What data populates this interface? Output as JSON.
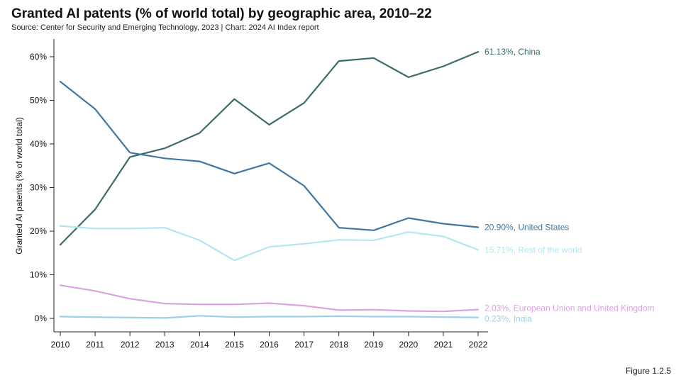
{
  "header": {
    "title": "Granted AI patents (% of world total) by geographic area, 2010–22",
    "subtitle": "Source: Center for Security and Emerging Technology, 2023 | Chart: 2024 AI Index report"
  },
  "footer": {
    "figure_label": "Figure 1.2.5"
  },
  "chart_data": {
    "type": "line",
    "x": [
      2010,
      2011,
      2012,
      2013,
      2014,
      2015,
      2016,
      2017,
      2018,
      2019,
      2020,
      2021,
      2022
    ],
    "ylabel": "Granted AI patents (% of world total)",
    "xlabel": "",
    "ylim": [
      0,
      65
    ],
    "yticks": [
      0,
      10,
      20,
      30,
      40,
      50,
      60
    ],
    "ytick_labels": [
      "0%",
      "10%",
      "20%",
      "30%",
      "40%",
      "50%",
      "60%"
    ],
    "grid": false,
    "series": [
      {
        "name": "China",
        "color": "#3d6b6b",
        "end_label": "61.13%, China",
        "values": [
          16.9,
          25.0,
          37.0,
          39.0,
          42.5,
          50.3,
          44.4,
          49.4,
          59.0,
          59.7,
          55.3,
          57.8,
          61.13
        ]
      },
      {
        "name": "United States",
        "color": "#3f77a2",
        "end_label": "20.90%, United States",
        "values": [
          54.3,
          48.0,
          38.0,
          36.7,
          36.0,
          33.2,
          35.6,
          30.4,
          20.8,
          20.2,
          23.0,
          21.7,
          20.9
        ]
      },
      {
        "name": "Rest of the world",
        "color": "#b4e6ee",
        "end_label": "15.71%, Rest of the world",
        "values": [
          21.2,
          20.6,
          20.6,
          20.8,
          17.9,
          13.3,
          16.4,
          17.1,
          18.0,
          17.9,
          19.8,
          18.8,
          15.71
        ]
      },
      {
        "name": "European Union and United Kingdom",
        "color": "#d9a3e0",
        "end_label": "2.03%, European Union and United Kingdom",
        "values": [
          7.6,
          6.3,
          4.5,
          3.4,
          3.2,
          3.2,
          3.5,
          2.9,
          1.9,
          2.0,
          1.7,
          1.6,
          2.03
        ]
      },
      {
        "name": "India",
        "color": "#9ccfe8",
        "end_label": "0.23%, India",
        "values": [
          0.4,
          0.3,
          0.2,
          0.1,
          0.6,
          0.3,
          0.4,
          0.4,
          0.5,
          0.4,
          0.4,
          0.3,
          0.23
        ]
      }
    ]
  }
}
